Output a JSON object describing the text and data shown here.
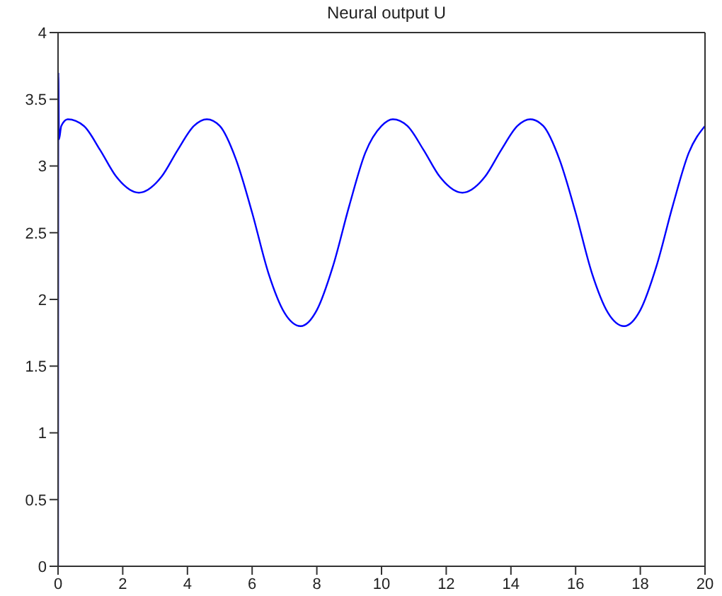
{
  "chart_data": {
    "type": "line",
    "title": "Neural output U",
    "x": [
      0,
      0.01,
      0.03,
      0.1,
      0.3,
      0.8,
      1.3,
      1.8,
      2.5,
      3.2,
      3.7,
      4.2,
      4.6,
      5.0,
      5.5,
      6.0,
      6.5,
      7.0,
      7.5,
      8.0,
      8.5,
      9.0,
      9.5,
      10.0,
      10.35,
      10.8,
      11.3,
      11.8,
      12.5,
      13.2,
      13.7,
      14.2,
      14.6,
      15.0,
      15.5,
      16.0,
      16.5,
      17.0,
      17.5,
      18.0,
      18.5,
      19.0,
      19.5,
      20.0
    ],
    "series": [
      {
        "color": "#0000ff",
        "values": [
          0,
          3.7,
          3.2,
          3.3,
          3.35,
          3.3,
          3.12,
          2.92,
          2.8,
          2.92,
          3.12,
          3.3,
          3.35,
          3.3,
          3.05,
          2.65,
          2.2,
          1.9,
          1.8,
          1.92,
          2.25,
          2.7,
          3.1,
          3.3,
          3.35,
          3.3,
          3.12,
          2.92,
          2.8,
          2.92,
          3.12,
          3.3,
          3.35,
          3.3,
          3.05,
          2.65,
          2.2,
          1.9,
          1.8,
          1.92,
          2.25,
          2.7,
          3.1,
          3.3
        ]
      }
    ],
    "xlim": [
      0,
      20
    ],
    "xticks": [
      0,
      2,
      4,
      6,
      8,
      10,
      12,
      14,
      16,
      18,
      20
    ],
    "ylim": [
      0,
      4
    ],
    "yticks": [
      0,
      0.5,
      1,
      1.5,
      2,
      2.5,
      3,
      3.5,
      4
    ],
    "grid": false,
    "legend": false,
    "marker": "none",
    "line_style": "solid"
  }
}
